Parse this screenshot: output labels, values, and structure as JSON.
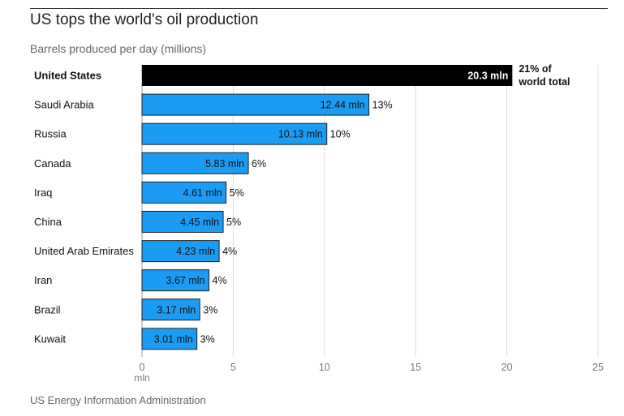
{
  "header": {
    "title": "US tops the world's oil production",
    "subtitle": "Barrels produced per day (millions)"
  },
  "footer": {
    "source": "US Energy Information Administration"
  },
  "colors": {
    "highlight": "#000000",
    "bar": "#1a9cf5",
    "grid": "#dddddd",
    "text": "#111111"
  },
  "chart_data": {
    "type": "bar",
    "orientation": "horizontal",
    "title": "US tops the world's oil production",
    "subtitle": "Barrels produced per day (millions)",
    "xlabel": "mln",
    "ylabel": "",
    "xlim": [
      0,
      25
    ],
    "ticks": [
      0,
      5,
      10,
      15,
      20,
      25
    ],
    "grid": true,
    "highlight_index": 0,
    "categories": [
      "United States",
      "Saudi Arabia",
      "Russia",
      "Canada",
      "Iraq",
      "China",
      "United Arab Emirates",
      "Iran",
      "Brazil",
      "Kuwait"
    ],
    "values": [
      20.3,
      12.44,
      10.13,
      5.83,
      4.61,
      4.45,
      4.23,
      3.67,
      3.17,
      3.01
    ],
    "value_labels": [
      "20.3 mln",
      "12.44 mln",
      "10.13 mln",
      "5.83 mln",
      "4.61 mln",
      "4.45 mln",
      "4.23 mln",
      "3.67 mln",
      "3.17 mln",
      "3.01 mln"
    ],
    "share_labels": [
      [
        "21% of",
        "world total"
      ],
      [
        "13%"
      ],
      [
        "10%"
      ],
      [
        "6%"
      ],
      [
        "5%"
      ],
      [
        "5%"
      ],
      [
        "4%"
      ],
      [
        "4%"
      ],
      [
        "3%"
      ],
      [
        "3%"
      ]
    ]
  }
}
